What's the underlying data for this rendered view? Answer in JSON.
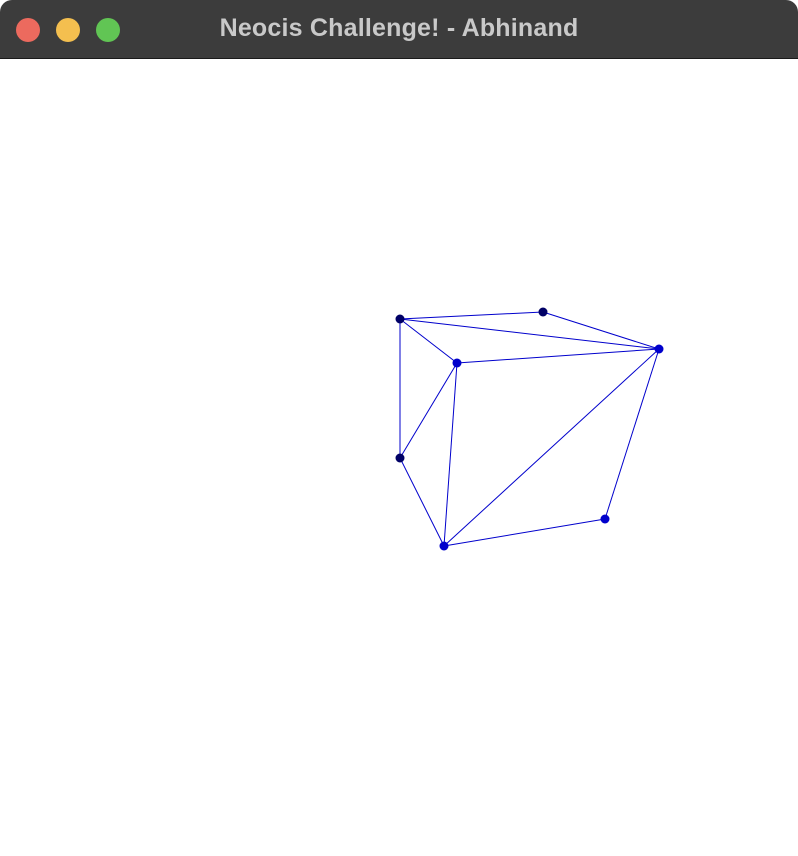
{
  "window": {
    "title": "Neocis Challenge! - Abhinand",
    "traffic_lights": {
      "close_color": "#ec6a5e",
      "minimize_color": "#f4bf4f",
      "zoom_color": "#61c554"
    }
  },
  "graph": {
    "edge_color": "#0000cc",
    "node_colors": {
      "dark": "#000066",
      "bright": "#0000cc"
    },
    "nodes": [
      {
        "id": "n1",
        "tone": "dark"
      },
      {
        "id": "n2",
        "tone": "dark"
      },
      {
        "id": "n3",
        "tone": "bright"
      },
      {
        "id": "n4",
        "tone": "bright"
      },
      {
        "id": "n5",
        "tone": "dark"
      },
      {
        "id": "n6",
        "tone": "bright"
      },
      {
        "id": "n7",
        "tone": "bright"
      }
    ],
    "edges": [
      [
        "n1",
        "n2"
      ],
      [
        "n2",
        "n3"
      ],
      [
        "n1",
        "n3"
      ],
      [
        "n1",
        "n4"
      ],
      [
        "n4",
        "n3"
      ],
      [
        "n1",
        "n5"
      ],
      [
        "n5",
        "n4"
      ],
      [
        "n5",
        "n6"
      ],
      [
        "n4",
        "n6"
      ],
      [
        "n6",
        "n3"
      ],
      [
        "n3",
        "n7"
      ],
      [
        "n7",
        "n6"
      ]
    ]
  }
}
